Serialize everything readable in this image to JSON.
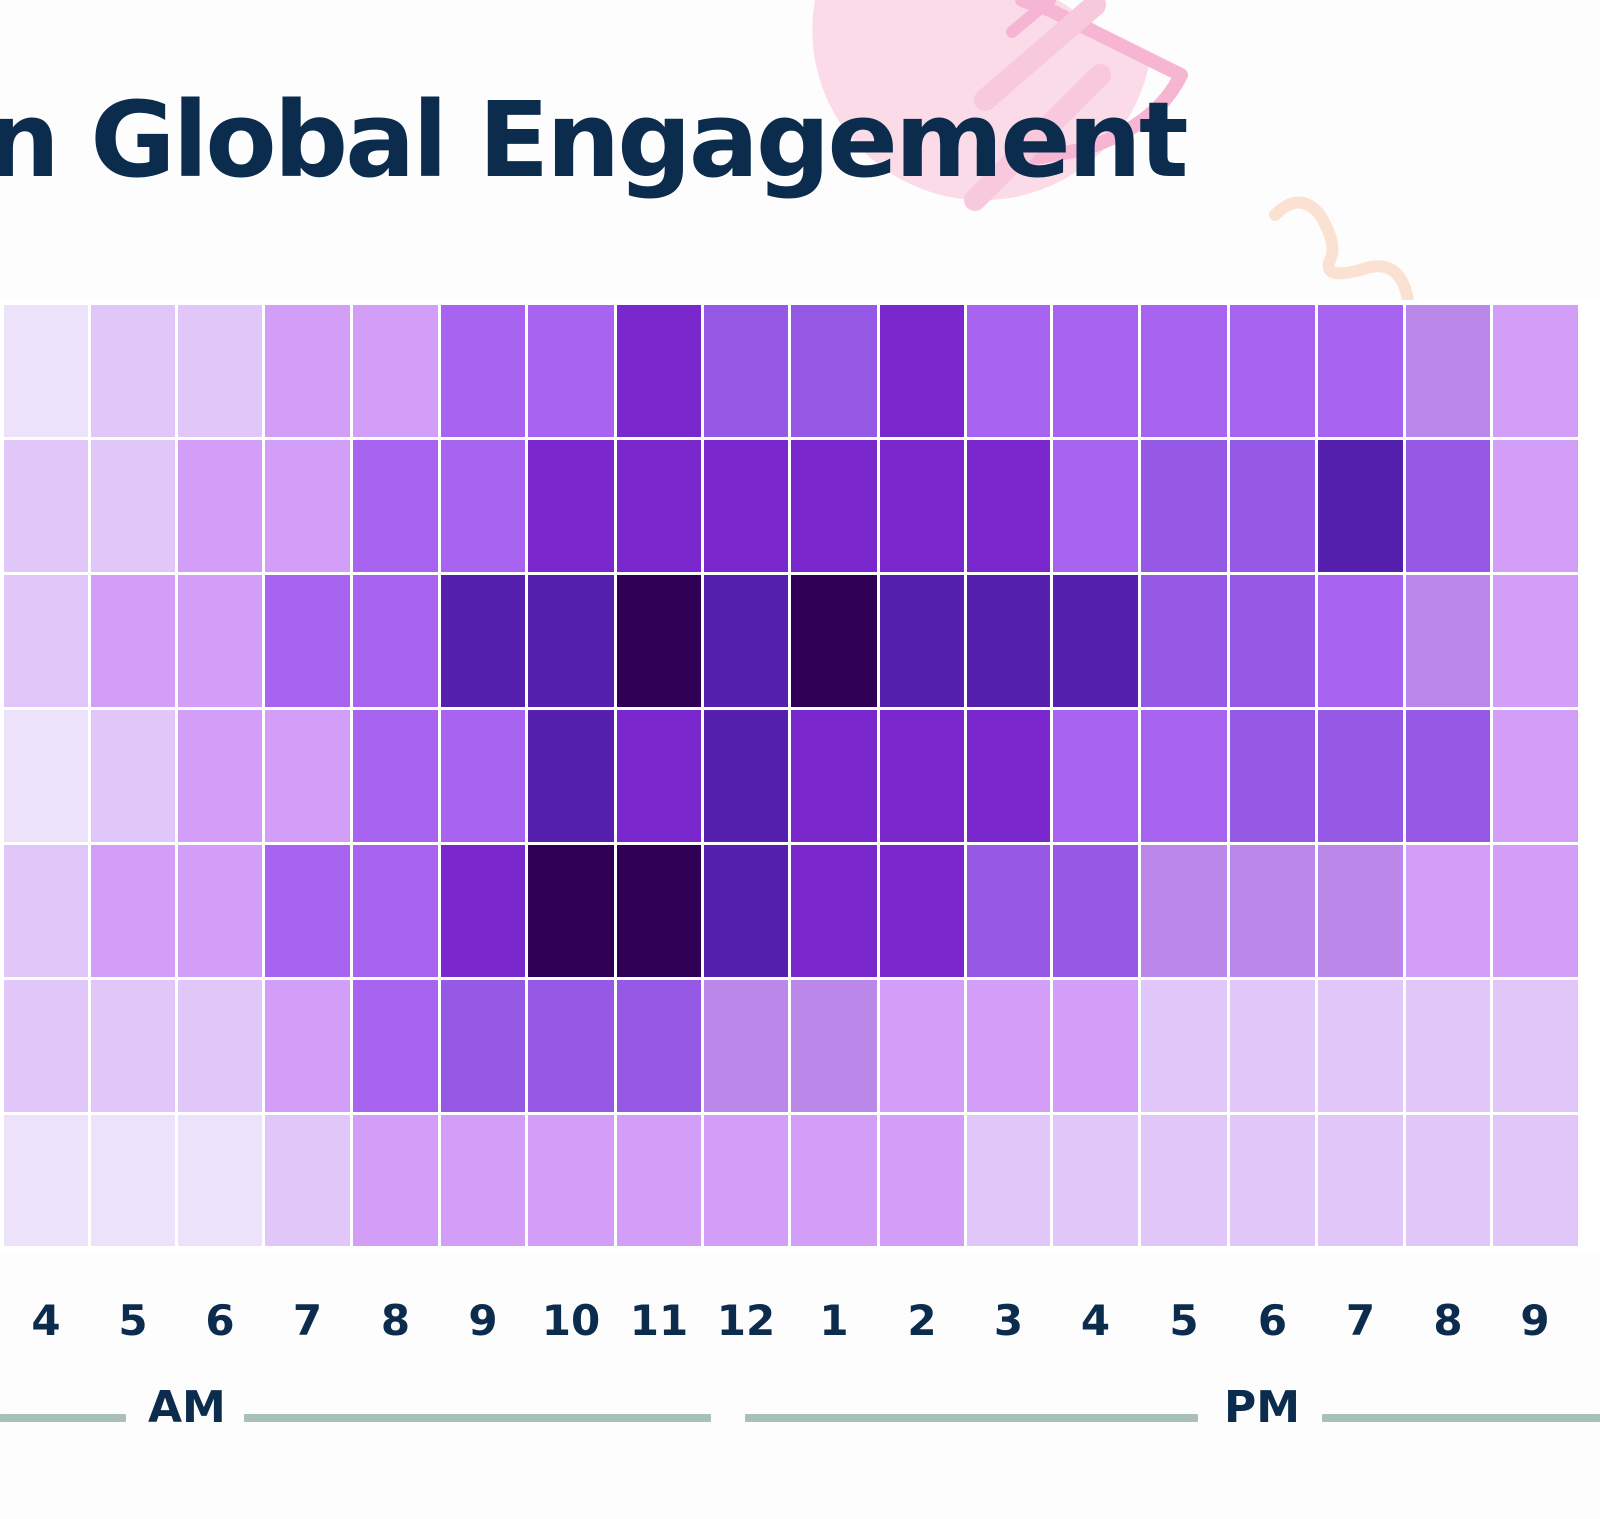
{
  "chart_data": {
    "type": "heatmap",
    "title": "n Global Engagement",
    "x": [
      "4",
      "5",
      "6",
      "7",
      "8",
      "9",
      "10",
      "11",
      "12",
      "1",
      "2",
      "3",
      "4",
      "5",
      "6",
      "7",
      "8",
      "9"
    ],
    "x_groups": [
      {
        "label": "AM",
        "from_index": 0,
        "to_index": 7
      },
      {
        "label": "PM",
        "from_index": 8,
        "to_index": 17
      }
    ],
    "rows": 7,
    "scale": "relative engagement level, 0 (lowest) to 9 (highest)",
    "values": [
      [
        1,
        2,
        2,
        3,
        3,
        5,
        5,
        7,
        6,
        6,
        7,
        5,
        5,
        5,
        5,
        5,
        4,
        3
      ],
      [
        2,
        2,
        3,
        3,
        5,
        5,
        7,
        7,
        7,
        7,
        7,
        7,
        5,
        6,
        6,
        8,
        6,
        3
      ],
      [
        2,
        3,
        3,
        5,
        5,
        8,
        8,
        9,
        8,
        9,
        8,
        8,
        8,
        6,
        6,
        5,
        4,
        3
      ],
      [
        1,
        2,
        3,
        3,
        5,
        5,
        8,
        7,
        8,
        7,
        7,
        7,
        5,
        5,
        6,
        6,
        6,
        3
      ],
      [
        2,
        3,
        3,
        5,
        5,
        7,
        9,
        9,
        8,
        7,
        7,
        6,
        6,
        4,
        4,
        4,
        3,
        3
      ],
      [
        2,
        2,
        2,
        3,
        5,
        6,
        6,
        6,
        4,
        4,
        3,
        3,
        3,
        2,
        2,
        2,
        2,
        2
      ],
      [
        1,
        1,
        1,
        2,
        3,
        3,
        3,
        3,
        3,
        3,
        3,
        2,
        2,
        2,
        2,
        2,
        2,
        2
      ]
    ],
    "palette": [
      "#f7f3fc",
      "#ece2fa",
      "#e1c6fa",
      "#d29ef8",
      "#bb88ea",
      "#a963f1",
      "#9659e6",
      "#7a27cd",
      "#5620ae",
      "#2f0056"
    ],
    "legend": "none"
  }
}
